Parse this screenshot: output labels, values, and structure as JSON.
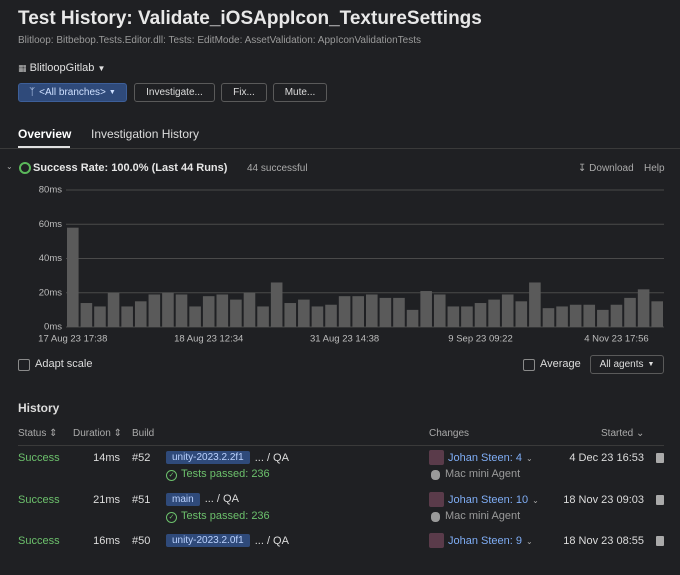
{
  "header": {
    "title": "Test History: Validate_iOSAppIcon_TextureSettings",
    "breadcrumb": "Blitloop: Bitbebop.Tests.Editor.dll: Tests: EditMode: AssetValidation: AppIconValidationTests",
    "project": "BlitloopGitlab",
    "branch": "<All branches>",
    "buttons": [
      "Investigate...",
      "Fix...",
      "Mute..."
    ]
  },
  "tabs": [
    "Overview",
    "Investigation History"
  ],
  "summary": {
    "success_rate": "Success Rate: 100.0% (Last 44 Runs)",
    "successful": "44 successful",
    "download": "Download",
    "help": "Help"
  },
  "chart_data": {
    "type": "bar",
    "categories": [
      "17 Aug 23 17:38",
      null,
      null,
      null,
      null,
      null,
      null,
      null,
      null,
      null,
      "18 Aug 23 12:34",
      null,
      null,
      null,
      null,
      null,
      null,
      null,
      null,
      null,
      "31 Aug 23 14:38",
      null,
      null,
      null,
      null,
      null,
      null,
      null,
      null,
      null,
      "9 Sep 23 09:22",
      null,
      null,
      null,
      null,
      null,
      null,
      null,
      null,
      null,
      "4 Nov 23 17:56",
      null,
      null,
      null
    ],
    "values": [
      58,
      14,
      12,
      20,
      12,
      15,
      19,
      20,
      19,
      12,
      18,
      19,
      16,
      20,
      12,
      26,
      14,
      16,
      12,
      13,
      18,
      18,
      19,
      17,
      17,
      10,
      21,
      19,
      12,
      12,
      14,
      16,
      19,
      15,
      26,
      11,
      12,
      13,
      13,
      10,
      13,
      17,
      22,
      15
    ],
    "color": "#5a5a5a",
    "ylim": [
      0,
      80
    ],
    "yticks": [
      {
        "value": 0,
        "label": "0ms"
      },
      {
        "value": 20,
        "label": "20ms"
      },
      {
        "value": 40,
        "label": "40ms"
      },
      {
        "value": 60,
        "label": "60ms"
      },
      {
        "value": 80,
        "label": "80ms"
      }
    ],
    "grid": true
  },
  "options": {
    "adapt_scale": "Adapt scale",
    "average": "Average",
    "agents": "All agents"
  },
  "history": {
    "title": "History",
    "columns": [
      "Status",
      "Duration",
      "Build",
      "Changes",
      "Started"
    ],
    "rows": [
      {
        "status": "Success",
        "duration": "14ms",
        "build": "#52",
        "branch": "unity-2023.2.2f1",
        "path": "... / QA",
        "tests": "Tests passed: 236",
        "changes": "Johan Steen: 4",
        "agent": "Mac mini Agent",
        "started": "4 Dec 23 16:53"
      },
      {
        "status": "Success",
        "duration": "21ms",
        "build": "#51",
        "branch": "main",
        "path": "... / QA",
        "tests": "Tests passed: 236",
        "changes": "Johan Steen: 10",
        "agent": "Mac mini Agent",
        "started": "18 Nov 23 09:03"
      },
      {
        "status": "Success",
        "duration": "16ms",
        "build": "#50",
        "branch": "unity-2023.2.0f1",
        "path": "... / QA",
        "changes": "Johan Steen: 9",
        "started": "18 Nov 23 08:55"
      }
    ]
  }
}
